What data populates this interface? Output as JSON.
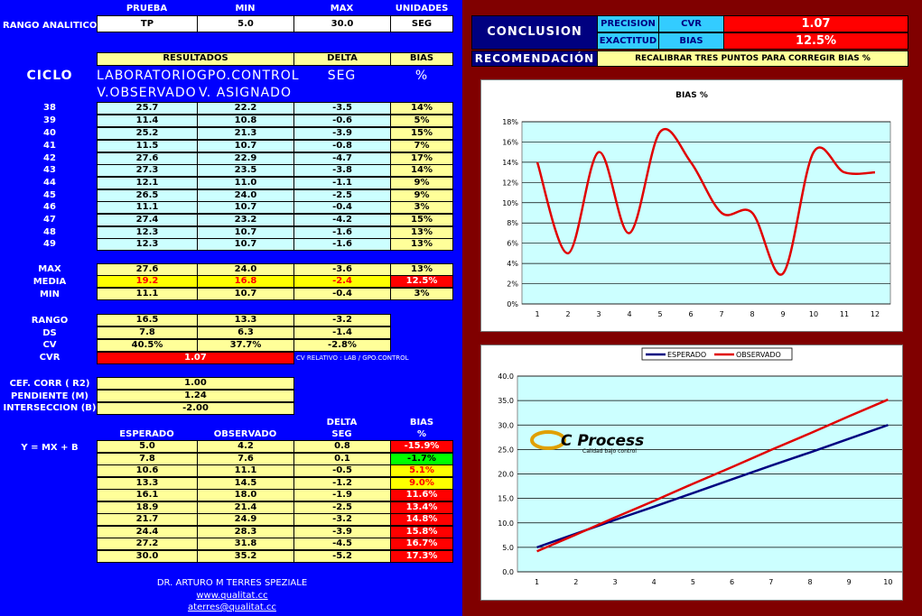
{
  "header": {
    "prueba_h": "PRUEBA",
    "min_h": "MIN",
    "max_h": "MAX",
    "unidades_h": "UNIDADES",
    "rango_label": "RANGO ANALITICO",
    "prueba": "TP",
    "min": "5.0",
    "max": "30.0",
    "unidades": "SEG"
  },
  "results_header": {
    "resultados": "RESULTADOS",
    "delta": "DELTA",
    "bias": "BIAS",
    "ciclo": "CICLO",
    "lab": "LABORATORIO",
    "gpo": "GPO.CONTROL",
    "seg": "SEG",
    "pct": "%",
    "vobs": "V.OBSERVADO",
    "vasig": "V. ASIGNADO"
  },
  "cycles": [
    {
      "c": "38",
      "lab": "25.7",
      "gpo": "22.2",
      "delta": "-3.5",
      "bias": "14%"
    },
    {
      "c": "39",
      "lab": "11.4",
      "gpo": "10.8",
      "delta": "-0.6",
      "bias": "5%"
    },
    {
      "c": "40",
      "lab": "25.2",
      "gpo": "21.3",
      "delta": "-3.9",
      "bias": "15%"
    },
    {
      "c": "41",
      "lab": "11.5",
      "gpo": "10.7",
      "delta": "-0.8",
      "bias": "7%"
    },
    {
      "c": "42",
      "lab": "27.6",
      "gpo": "22.9",
      "delta": "-4.7",
      "bias": "17%"
    },
    {
      "c": "43",
      "lab": "27.3",
      "gpo": "23.5",
      "delta": "-3.8",
      "bias": "14%"
    },
    {
      "c": "44",
      "lab": "12.1",
      "gpo": "11.0",
      "delta": "-1.1",
      "bias": "9%"
    },
    {
      "c": "45",
      "lab": "26.5",
      "gpo": "24.0",
      "delta": "-2.5",
      "bias": "9%"
    },
    {
      "c": "46",
      "lab": "11.1",
      "gpo": "10.7",
      "delta": "-0.4",
      "bias": "3%"
    },
    {
      "c": "47",
      "lab": "27.4",
      "gpo": "23.2",
      "delta": "-4.2",
      "bias": "15%"
    },
    {
      "c": "48",
      "lab": "12.3",
      "gpo": "10.7",
      "delta": "-1.6",
      "bias": "13%"
    },
    {
      "c": "49",
      "lab": "12.3",
      "gpo": "10.7",
      "delta": "-1.6",
      "bias": "13%"
    }
  ],
  "summary": {
    "max": {
      "label": "MAX",
      "lab": "27.6",
      "gpo": "24.0",
      "delta": "-3.6",
      "bias": "13%"
    },
    "media": {
      "label": "MEDIA",
      "lab": "19.2",
      "gpo": "16.8",
      "delta": "-2.4",
      "bias": "12.5%"
    },
    "min": {
      "label": "MIN",
      "lab": "11.1",
      "gpo": "10.7",
      "delta": "-0.4",
      "bias": "3%"
    }
  },
  "stats": {
    "rango": {
      "label": "RANGO",
      "lab": "16.5",
      "gpo": "13.3",
      "delta": "-3.2"
    },
    "ds": {
      "label": "DS",
      "lab": "7.8",
      "gpo": "6.3",
      "delta": "-1.4"
    },
    "cv": {
      "label": "CV",
      "lab": "40.5%",
      "gpo": "37.7%",
      "delta": "-2.8%"
    },
    "cvr": {
      "label": "CVR",
      "value": "1.07",
      "note": "CV  RELATIVO : LAB / GPO.CONTROL"
    }
  },
  "regression": {
    "r2_label": "CEF. CORR ( R2)",
    "r2": "1.00",
    "m_label": "PENDIENTE (M)",
    "m": "1.24",
    "b_label": "INTERSECCION (B)",
    "b": "-2.00"
  },
  "linear": {
    "equation": "Y = MX + B",
    "esperado": "ESPERADO",
    "observado": "OBSERVADO",
    "delta": "DELTA",
    "seg": "SEG",
    "bias": "BIAS",
    "pct": "%",
    "rows": [
      {
        "e": "5.0",
        "o": "4.2",
        "d": "0.8",
        "b": "-15.9%",
        "col": "red"
      },
      {
        "e": "7.8",
        "o": "7.6",
        "d": "0.1",
        "b": "-1.7%",
        "col": "grn"
      },
      {
        "e": "10.6",
        "o": "11.1",
        "d": "-0.5",
        "b": "5.1%",
        "col": "yel"
      },
      {
        "e": "13.3",
        "o": "14.5",
        "d": "-1.2",
        "b": "9.0%",
        "col": "yel"
      },
      {
        "e": "16.1",
        "o": "18.0",
        "d": "-1.9",
        "b": "11.6%",
        "col": "red"
      },
      {
        "e": "18.9",
        "o": "21.4",
        "d": "-2.5",
        "b": "13.4%",
        "col": "red"
      },
      {
        "e": "21.7",
        "o": "24.9",
        "d": "-3.2",
        "b": "14.8%",
        "col": "red"
      },
      {
        "e": "24.4",
        "o": "28.3",
        "d": "-3.9",
        "b": "15.8%",
        "col": "red"
      },
      {
        "e": "27.2",
        "o": "31.8",
        "d": "-4.5",
        "b": "16.7%",
        "col": "red"
      },
      {
        "e": "30.0",
        "o": "35.2",
        "d": "-5.2",
        "b": "17.3%",
        "col": "red"
      }
    ]
  },
  "footer": {
    "author": "DR. ARTURO M TERRES SPEZIALE",
    "web": "www.qualitat.cc",
    "email": "aterres@qualitat.cc"
  },
  "conclusion": {
    "title": "CONCLUSION",
    "precision": "PRECISION",
    "cvr": "CVR",
    "cvr_value": "1.07",
    "exactitud": "EXACTITUD",
    "bias": "BIAS",
    "bias_value": "12.5%",
    "recom_label": "RECOMENDACIÓN",
    "recom": "RECALIBRAR TRES PUNTOS PARA CORREGIR BIAS %"
  },
  "logo": {
    "text": "C Process",
    "tagline": "Calidad bajo control"
  },
  "chart_data": [
    {
      "type": "line",
      "title": "BIAS %",
      "categories": [
        "1",
        "2",
        "3",
        "4",
        "5",
        "6",
        "7",
        "8",
        "9",
        "10",
        "11",
        "12"
      ],
      "series": [
        {
          "values": [
            14,
            5,
            15,
            7,
            17,
            14,
            9,
            9,
            3,
            15,
            13,
            13
          ],
          "color": "#e00000"
        }
      ],
      "ylim": [
        0,
        18
      ],
      "yticks": [
        "0%",
        "2%",
        "4%",
        "6%",
        "8%",
        "10%",
        "12%",
        "14%",
        "16%",
        "18%"
      ],
      "grid": true,
      "plot_bg": "#ccffff"
    },
    {
      "type": "line",
      "categories": [
        "1",
        "2",
        "3",
        "4",
        "5",
        "6",
        "7",
        "8",
        "9",
        "10"
      ],
      "series": [
        {
          "name": "ESPERADO",
          "values": [
            5.0,
            7.8,
            10.6,
            13.3,
            16.1,
            18.9,
            21.7,
            24.4,
            27.2,
            30.0
          ],
          "color": "#000080"
        },
        {
          "name": "OBSERVADO",
          "values": [
            4.2,
            7.6,
            11.1,
            14.5,
            18.0,
            21.4,
            24.9,
            28.3,
            31.8,
            35.2
          ],
          "color": "#e00000"
        }
      ],
      "ylim": [
        0,
        40
      ],
      "yticks": [
        "0.0",
        "5.0",
        "10.0",
        "15.0",
        "20.0",
        "25.0",
        "30.0",
        "35.0",
        "40.0"
      ],
      "legend": "top",
      "grid": true,
      "plot_bg": "#ccffff"
    }
  ]
}
